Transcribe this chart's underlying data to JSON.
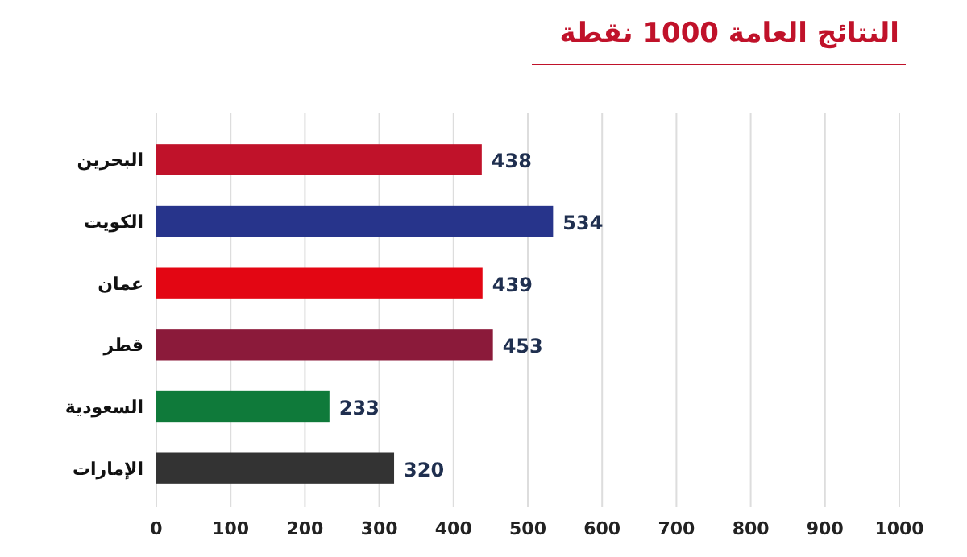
{
  "chart_data": {
    "type": "bar",
    "orientation": "horizontal",
    "title": "النتائج العامة 1000 نقطة",
    "categories": [
      "البحرين",
      "الكويت",
      "عمان",
      "قطر",
      "السعودية",
      "الإمارات"
    ],
    "values": [
      438,
      534,
      439,
      453,
      233,
      320
    ],
    "colors": [
      "#c0122a",
      "#27348b",
      "#e30613",
      "#8b1a3a",
      "#0f7a3a",
      "#333333"
    ],
    "xlim": [
      0,
      1000
    ],
    "xticks": [
      0,
      100,
      200,
      300,
      400,
      500,
      600,
      700,
      800,
      900,
      1000
    ],
    "grid": "x",
    "data_labels": true
  }
}
